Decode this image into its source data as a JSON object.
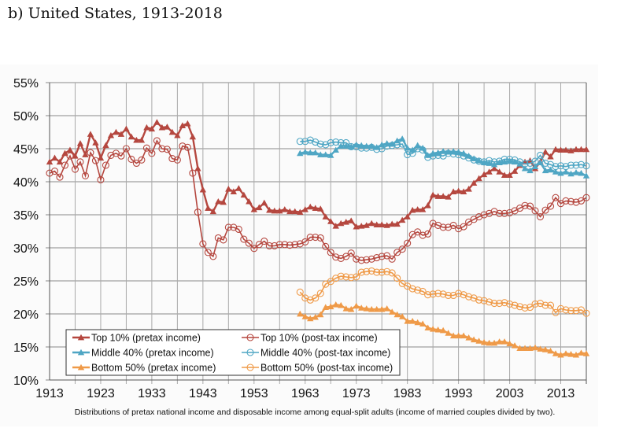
{
  "page": {
    "title": "b) United States, 1913-2018"
  },
  "chart_data": {
    "type": "line",
    "title": "b) United States, 1913-2018",
    "caption": "Distributions of pretax national income and disposable income among equal-split adults (income of married couples divided by two).",
    "xlabel": "",
    "ylabel": "",
    "xlim": [
      1913,
      2018
    ],
    "ylim": [
      10,
      55
    ],
    "x_ticks": [
      "1913",
      "1923",
      "1933",
      "1943",
      "1953",
      "1963",
      "1973",
      "1983",
      "1993",
      "2003",
      "2013"
    ],
    "x_tick_values": [
      1913,
      1923,
      1933,
      1943,
      1953,
      1963,
      1973,
      1983,
      1993,
      2003,
      2013
    ],
    "y_ticks": [
      "10%",
      "15%",
      "20%",
      "25%",
      "30%",
      "35%",
      "40%",
      "45%",
      "50%",
      "55%"
    ],
    "y_tick_values": [
      10,
      15,
      20,
      25,
      30,
      35,
      40,
      45,
      50,
      55
    ],
    "grid": true,
    "legend_placement": "bottom-left",
    "series": [
      {
        "name": "Top 10% (pretax income)",
        "color": "#b5473f",
        "marker": "triangle",
        "x": [
          1913,
          1914,
          1915,
          1916,
          1917,
          1918,
          1919,
          1920,
          1921,
          1922,
          1923,
          1924,
          1925,
          1926,
          1927,
          1928,
          1929,
          1930,
          1931,
          1932,
          1933,
          1934,
          1935,
          1936,
          1937,
          1938,
          1939,
          1940,
          1941,
          1942,
          1943,
          1944,
          1945,
          1946,
          1947,
          1948,
          1949,
          1950,
          1951,
          1952,
          1953,
          1954,
          1955,
          1956,
          1957,
          1958,
          1959,
          1960,
          1961,
          1962,
          1963,
          1964,
          1965,
          1966,
          1967,
          1968,
          1969,
          1970,
          1971,
          1972,
          1973,
          1974,
          1975,
          1976,
          1977,
          1978,
          1979,
          1980,
          1981,
          1982,
          1983,
          1984,
          1985,
          1986,
          1987,
          1988,
          1989,
          1990,
          1991,
          1992,
          1993,
          1994,
          1995,
          1996,
          1997,
          1998,
          1999,
          2000,
          2001,
          2002,
          2003,
          2004,
          2005,
          2006,
          2007,
          2008,
          2009,
          2010,
          2011,
          2012,
          2013,
          2014,
          2015,
          2016,
          2017,
          2018
        ],
        "y": [
          43.0,
          43.6,
          43.0,
          44.3,
          44.8,
          43.9,
          45.8,
          44.1,
          47.2,
          45.9,
          43.6,
          45.5,
          47.0,
          47.5,
          47.2,
          48.0,
          46.8,
          46.3,
          46.3,
          48.2,
          48.0,
          49.0,
          48.2,
          48.3,
          47.5,
          47.0,
          48.5,
          48.8,
          46.8,
          42.0,
          38.8,
          36.0,
          35.5,
          37.0,
          36.9,
          38.9,
          38.5,
          39.0,
          38.0,
          37.0,
          35.8,
          36.1,
          36.8,
          35.7,
          35.6,
          35.6,
          35.8,
          35.5,
          35.5,
          35.4,
          35.8,
          36.2,
          36.0,
          35.9,
          34.7,
          34.0,
          33.3,
          33.7,
          33.9,
          34.1,
          33.2,
          33.3,
          33.4,
          33.7,
          33.5,
          33.5,
          33.4,
          33.6,
          33.6,
          34.2,
          34.7,
          35.7,
          35.8,
          35.8,
          36.4,
          38.0,
          37.8,
          37.8,
          37.7,
          38.5,
          38.6,
          38.5,
          38.9,
          39.8,
          40.5,
          41.1,
          41.5,
          42.0,
          41.5,
          41.0,
          41.0,
          41.6,
          42.5,
          43.0,
          43.2,
          42.0,
          43.0,
          44.5,
          43.8,
          44.9,
          44.8,
          44.8,
          44.7,
          44.9,
          44.9,
          44.9
        ]
      },
      {
        "name": "Top 10% (post-tax income)",
        "color": "#b5473f",
        "marker": "circle",
        "x": [
          1913,
          1914,
          1915,
          1916,
          1917,
          1918,
          1919,
          1920,
          1921,
          1922,
          1923,
          1924,
          1925,
          1926,
          1927,
          1928,
          1929,
          1930,
          1931,
          1932,
          1933,
          1934,
          1935,
          1936,
          1937,
          1938,
          1939,
          1940,
          1941,
          1942,
          1943,
          1944,
          1945,
          1946,
          1947,
          1948,
          1949,
          1950,
          1951,
          1952,
          1953,
          1954,
          1955,
          1956,
          1957,
          1958,
          1959,
          1960,
          1961,
          1962,
          1963,
          1964,
          1965,
          1966,
          1967,
          1968,
          1969,
          1970,
          1971,
          1972,
          1973,
          1974,
          1975,
          1976,
          1977,
          1978,
          1979,
          1980,
          1981,
          1982,
          1983,
          1984,
          1985,
          1986,
          1987,
          1988,
          1989,
          1990,
          1991,
          1992,
          1993,
          1994,
          1995,
          1996,
          1997,
          1998,
          1999,
          2000,
          2001,
          2002,
          2003,
          2004,
          2005,
          2006,
          2007,
          2008,
          2009,
          2010,
          2011,
          2012,
          2013,
          2014,
          2015,
          2016,
          2017,
          2018
        ],
        "y": [
          41.3,
          41.6,
          40.7,
          42.5,
          43.9,
          41.9,
          43.0,
          40.9,
          44.4,
          43.2,
          40.3,
          42.5,
          44.0,
          44.3,
          43.9,
          45.0,
          43.4,
          42.8,
          43.3,
          45.1,
          44.3,
          46.2,
          45.0,
          44.9,
          43.5,
          43.3,
          45.4,
          45.2,
          41.3,
          35.4,
          30.6,
          29.3,
          28.7,
          31.5,
          31.2,
          33.1,
          33.1,
          32.8,
          31.3,
          30.7,
          29.9,
          30.5,
          31.0,
          30.3,
          30.3,
          30.5,
          30.5,
          30.4,
          30.5,
          30.6,
          30.9,
          31.6,
          31.6,
          31.5,
          30.2,
          29.3,
          28.6,
          28.4,
          28.7,
          29.2,
          28.3,
          28.1,
          28.2,
          28.3,
          28.5,
          28.7,
          28.8,
          28.3,
          29.3,
          29.8,
          30.7,
          32.0,
          32.4,
          31.9,
          32.1,
          33.7,
          33.4,
          33.1,
          33.1,
          33.4,
          32.9,
          33.2,
          33.9,
          34.3,
          34.7,
          35.0,
          35.2,
          35.5,
          35.2,
          35.2,
          35.3,
          35.6,
          36.0,
          36.4,
          36.3,
          35.6,
          34.7,
          35.7,
          36.3,
          37.6,
          36.7,
          37.1,
          37.0,
          36.9,
          37.1,
          37.6
        ]
      },
      {
        "name": "Middle 40% (pretax income)",
        "color": "#4fa6c4",
        "marker": "triangle",
        "x": [
          1962,
          1963,
          1964,
          1965,
          1966,
          1967,
          1968,
          1969,
          1970,
          1971,
          1972,
          1973,
          1974,
          1975,
          1976,
          1977,
          1978,
          1979,
          1980,
          1981,
          1982,
          1983,
          1984,
          1985,
          1986,
          1987,
          1988,
          1989,
          1990,
          1991,
          1992,
          1993,
          1994,
          1995,
          1996,
          1997,
          1998,
          1999,
          2000,
          2001,
          2002,
          2003,
          2004,
          2005,
          2006,
          2007,
          2008,
          2009,
          2010,
          2011,
          2012,
          2013,
          2014,
          2015,
          2016,
          2017,
          2018
        ],
        "y": [
          44.3,
          44.5,
          44.4,
          44.4,
          44.1,
          44.1,
          44.0,
          44.8,
          45.4,
          45.4,
          45.3,
          45.6,
          45.5,
          45.4,
          45.4,
          45.2,
          45.6,
          45.8,
          45.7,
          46.2,
          46.5,
          45.1,
          44.8,
          45.5,
          45.1,
          44.0,
          44.3,
          44.4,
          44.6,
          44.5,
          44.6,
          44.5,
          44.3,
          43.9,
          43.5,
          43.2,
          42.9,
          42.8,
          42.6,
          42.9,
          43.0,
          43.1,
          43.0,
          42.7,
          42.0,
          41.7,
          42.3,
          42.9,
          41.7,
          41.8,
          41.5,
          41.3,
          41.5,
          41.2,
          41.4,
          41.3,
          40.9
        ]
      },
      {
        "name": "Middle 40% (post-tax income)",
        "color": "#4fa6c4",
        "marker": "circle",
        "x": [
          1962,
          1963,
          1964,
          1965,
          1966,
          1967,
          1968,
          1969,
          1970,
          1971,
          1972,
          1973,
          1974,
          1975,
          1976,
          1977,
          1978,
          1979,
          1980,
          1981,
          1982,
          1983,
          1984,
          1985,
          1986,
          1987,
          1988,
          1989,
          1990,
          1991,
          1992,
          1993,
          1994,
          1995,
          1996,
          1997,
          1998,
          1999,
          2000,
          2001,
          2002,
          2003,
          2004,
          2005,
          2006,
          2007,
          2008,
          2009,
          2010,
          2011,
          2012,
          2013,
          2014,
          2015,
          2016,
          2017,
          2018
        ],
        "y": [
          46.1,
          46.1,
          46.3,
          46.0,
          45.7,
          45.6,
          45.9,
          46.0,
          45.9,
          45.9,
          45.3,
          45.3,
          45.1,
          45.1,
          45.2,
          44.9,
          45.0,
          45.4,
          45.5,
          45.6,
          45.7,
          44.1,
          44.3,
          45.0,
          44.8,
          43.7,
          43.9,
          44.0,
          43.9,
          44.3,
          44.2,
          44.1,
          43.9,
          43.6,
          43.3,
          43.1,
          43.0,
          43.2,
          43.0,
          43.1,
          43.4,
          43.4,
          43.3,
          43.0,
          42.7,
          42.8,
          43.1,
          44.0,
          42.8,
          42.6,
          42.3,
          42.4,
          42.3,
          42.5,
          42.5,
          42.6,
          42.4
        ]
      },
      {
        "name": "Bottom 50% (pretax income)",
        "color": "#ef9a48",
        "marker": "triangle",
        "x": [
          1962,
          1963,
          1964,
          1965,
          1966,
          1967,
          1968,
          1969,
          1970,
          1971,
          1972,
          1973,
          1974,
          1975,
          1976,
          1977,
          1978,
          1979,
          1980,
          1981,
          1982,
          1983,
          1984,
          1985,
          1986,
          1987,
          1988,
          1989,
          1990,
          1991,
          1992,
          1993,
          1994,
          1995,
          1996,
          1997,
          1998,
          1999,
          2000,
          2001,
          2002,
          2003,
          2004,
          2005,
          2006,
          2007,
          2008,
          2009,
          2010,
          2011,
          2012,
          2013,
          2014,
          2015,
          2016,
          2017,
          2018
        ],
        "y": [
          20.0,
          19.6,
          19.3,
          19.5,
          19.9,
          21.0,
          21.1,
          21.4,
          21.3,
          20.8,
          20.7,
          21.2,
          20.9,
          20.8,
          20.7,
          20.7,
          20.7,
          20.8,
          20.3,
          19.9,
          19.6,
          18.9,
          18.9,
          18.7,
          18.5,
          17.9,
          17.7,
          17.6,
          17.5,
          17.1,
          16.7,
          16.7,
          16.7,
          16.4,
          16.1,
          15.9,
          15.7,
          15.6,
          15.6,
          15.8,
          15.8,
          15.5,
          15.2,
          14.8,
          14.8,
          14.8,
          14.9,
          14.7,
          14.6,
          14.4,
          14.0,
          13.8,
          14.0,
          13.9,
          13.8,
          14.1,
          14.0
        ]
      },
      {
        "name": "Bottom 50% (post-tax income)",
        "color": "#ef9a48",
        "marker": "circle",
        "x": [
          1962,
          1963,
          1964,
          1965,
          1966,
          1967,
          1968,
          1969,
          1970,
          1971,
          1972,
          1973,
          1974,
          1975,
          1976,
          1977,
          1978,
          1979,
          1980,
          1981,
          1982,
          1983,
          1984,
          1985,
          1986,
          1987,
          1988,
          1989,
          1990,
          1991,
          1992,
          1993,
          1994,
          1995,
          1996,
          1997,
          1998,
          1999,
          2000,
          2001,
          2002,
          2003,
          2004,
          2005,
          2006,
          2007,
          2008,
          2009,
          2010,
          2011,
          2012,
          2013,
          2014,
          2015,
          2016,
          2017,
          2018
        ],
        "y": [
          23.3,
          22.4,
          22.1,
          22.4,
          23.1,
          24.5,
          24.9,
          25.4,
          25.7,
          25.6,
          25.5,
          25.6,
          26.3,
          26.4,
          26.5,
          26.3,
          26.3,
          26.4,
          26.2,
          25.4,
          24.6,
          24.2,
          23.8,
          23.6,
          23.4,
          22.9,
          23.0,
          23.1,
          23.0,
          22.8,
          22.8,
          23.1,
          22.9,
          22.6,
          22.4,
          22.1,
          22.0,
          21.8,
          21.6,
          21.6,
          21.7,
          21.5,
          21.3,
          21.1,
          20.9,
          21.0,
          21.5,
          21.6,
          21.3,
          21.3,
          20.2,
          20.8,
          20.6,
          20.5,
          20.5,
          20.6,
          20.1
        ]
      }
    ]
  }
}
